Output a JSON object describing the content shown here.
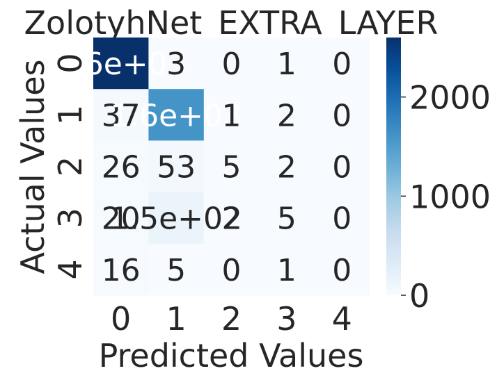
{
  "chart_data": {
    "type": "heatmap",
    "title": "ZolotyhNet_EXTRA_LAYER",
    "xlabel": "Predicted Values",
    "ylabel": "Actual Values",
    "x_categories": [
      "0",
      "1",
      "2",
      "3",
      "4"
    ],
    "y_categories": [
      "0",
      "1",
      "2",
      "3",
      "4"
    ],
    "values": [
      [
        2600,
        3,
        0,
        1,
        0
      ],
      [
        37,
        1600,
        1,
        2,
        0
      ],
      [
        26,
        53,
        5,
        2,
        0
      ],
      [
        20,
        150,
        2,
        5,
        0
      ],
      [
        16,
        5,
        0,
        1,
        0
      ]
    ],
    "cell_labels": [
      [
        "2.6e+03",
        "3",
        "0",
        "1",
        "0"
      ],
      [
        "37",
        "1.6e+03",
        "1",
        "2",
        "0"
      ],
      [
        "26",
        "53",
        "5",
        "2",
        "0"
      ],
      [
        "20",
        "1.5e+02",
        "2",
        "5",
        "0"
      ],
      [
        "16",
        "5",
        "0",
        "1",
        "0"
      ]
    ],
    "colorbar": {
      "ticks": [
        0,
        1000,
        2000
      ],
      "tick_labels": [
        "0",
        "1000",
        "2000"
      ],
      "range": [
        0,
        2600
      ]
    },
    "colormap": "Blues",
    "colors": {
      "low": "#f7fbff",
      "high": "#08306b",
      "text_dark": "#262626",
      "text_light": "#ffffff"
    }
  }
}
